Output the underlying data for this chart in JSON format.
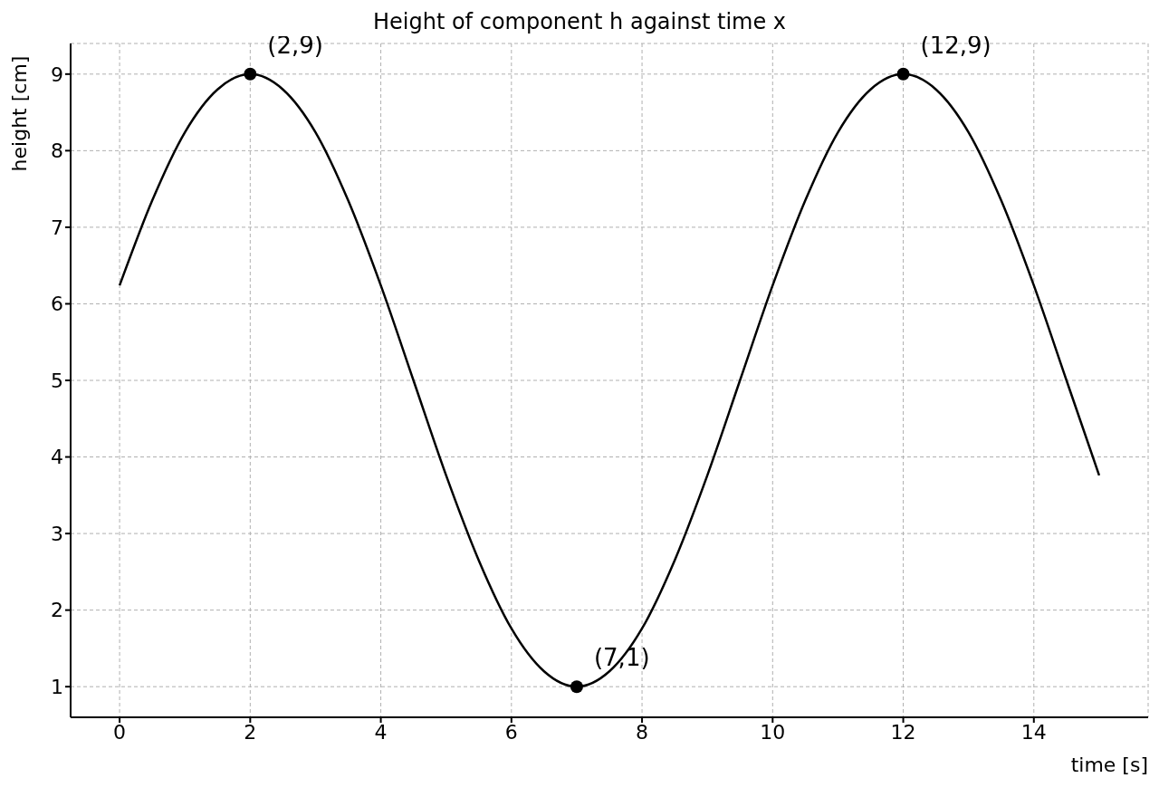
{
  "chart_data": {
    "type": "line",
    "title": "Height of component h against time x",
    "xlabel": "time [s]",
    "ylabel": "height [cm]",
    "xlim": [
      -0.75,
      15.75
    ],
    "ylim": [
      0.6,
      9.4
    ],
    "xticks": [
      0,
      2,
      4,
      6,
      8,
      10,
      12,
      14
    ],
    "yticks": [
      1,
      2,
      3,
      4,
      5,
      6,
      7,
      8,
      9
    ],
    "grid": true,
    "series": [
      {
        "color": "#000000",
        "x": [
          0,
          0.5,
          1,
          1.5,
          2,
          2.5,
          3,
          3.5,
          4,
          4.5,
          5,
          5.5,
          6,
          6.5,
          7,
          7.5,
          8,
          8.5,
          9,
          9.5,
          10,
          10.5,
          11,
          11.5,
          12,
          12.5,
          13,
          13.5,
          14,
          14.5,
          15
        ],
        "values": [
          6.24,
          7.35,
          8.24,
          8.8,
          9,
          8.8,
          8.24,
          7.35,
          6.24,
          5,
          3.76,
          2.65,
          1.76,
          1.2,
          1,
          1.2,
          1.76,
          2.65,
          3.76,
          5,
          6.24,
          7.35,
          8.24,
          8.8,
          9,
          8.8,
          8.24,
          7.35,
          6.24,
          5,
          3.76
        ]
      },
      {
        "type": "scatter",
        "color": "#000000",
        "x": [
          2,
          7,
          12
        ],
        "values": [
          9,
          1,
          9
        ]
      }
    ],
    "annotations": [
      {
        "text": "(2,9)",
        "x": 2,
        "y": 9
      },
      {
        "text": "(7,1)",
        "x": 7,
        "y": 1
      },
      {
        "text": "(12,9)",
        "x": 12,
        "y": 9
      }
    ]
  }
}
